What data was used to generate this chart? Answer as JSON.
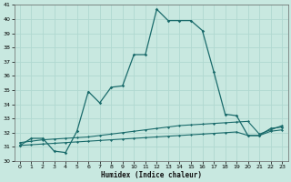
{
  "xlabel": "Humidex (Indice chaleur)",
  "bg_color": "#c8e8e0",
  "grid_color": "#b0d8d0",
  "line_color": "#1a6b6b",
  "xlim": [
    -0.5,
    23.5
  ],
  "ylim": [
    30,
    41
  ],
  "xticks": [
    0,
    1,
    2,
    3,
    4,
    5,
    6,
    7,
    8,
    9,
    10,
    11,
    12,
    13,
    14,
    15,
    16,
    17,
    18,
    19,
    20,
    21,
    22,
    23
  ],
  "yticks": [
    30,
    31,
    32,
    33,
    34,
    35,
    36,
    37,
    38,
    39,
    40,
    41
  ],
  "line1_x": [
    0,
    1,
    2,
    3,
    4,
    5,
    6,
    7,
    8,
    9,
    10,
    11,
    12,
    13,
    14,
    15,
    16,
    17,
    18,
    19,
    20,
    21,
    22,
    23
  ],
  "line1_y": [
    31.1,
    31.6,
    31.6,
    30.7,
    30.6,
    32.1,
    34.9,
    34.1,
    35.2,
    35.3,
    37.5,
    37.5,
    40.7,
    39.9,
    39.9,
    39.9,
    39.2,
    36.3,
    33.3,
    33.2,
    31.8,
    31.8,
    32.3,
    32.4
  ],
  "line2_x": [
    0,
    1,
    2,
    3,
    4,
    5,
    6,
    7,
    8,
    9,
    10,
    11,
    12,
    13,
    14,
    15,
    16,
    17,
    18,
    19,
    20,
    21,
    22,
    23
  ],
  "line2_y": [
    31.3,
    31.4,
    31.5,
    31.55,
    31.6,
    31.65,
    31.7,
    31.8,
    31.9,
    32.0,
    32.1,
    32.2,
    32.3,
    32.4,
    32.5,
    32.55,
    32.6,
    32.65,
    32.7,
    32.75,
    32.8,
    31.9,
    32.2,
    32.5
  ],
  "line3_x": [
    0,
    1,
    2,
    3,
    4,
    5,
    6,
    7,
    8,
    9,
    10,
    11,
    12,
    13,
    14,
    15,
    16,
    17,
    18,
    19,
    20,
    21,
    22,
    23
  ],
  "line3_y": [
    31.1,
    31.15,
    31.2,
    31.25,
    31.3,
    31.35,
    31.4,
    31.45,
    31.5,
    31.55,
    31.6,
    31.65,
    31.7,
    31.75,
    31.8,
    31.85,
    31.9,
    31.95,
    32.0,
    32.05,
    31.8,
    31.8,
    32.1,
    32.2
  ]
}
